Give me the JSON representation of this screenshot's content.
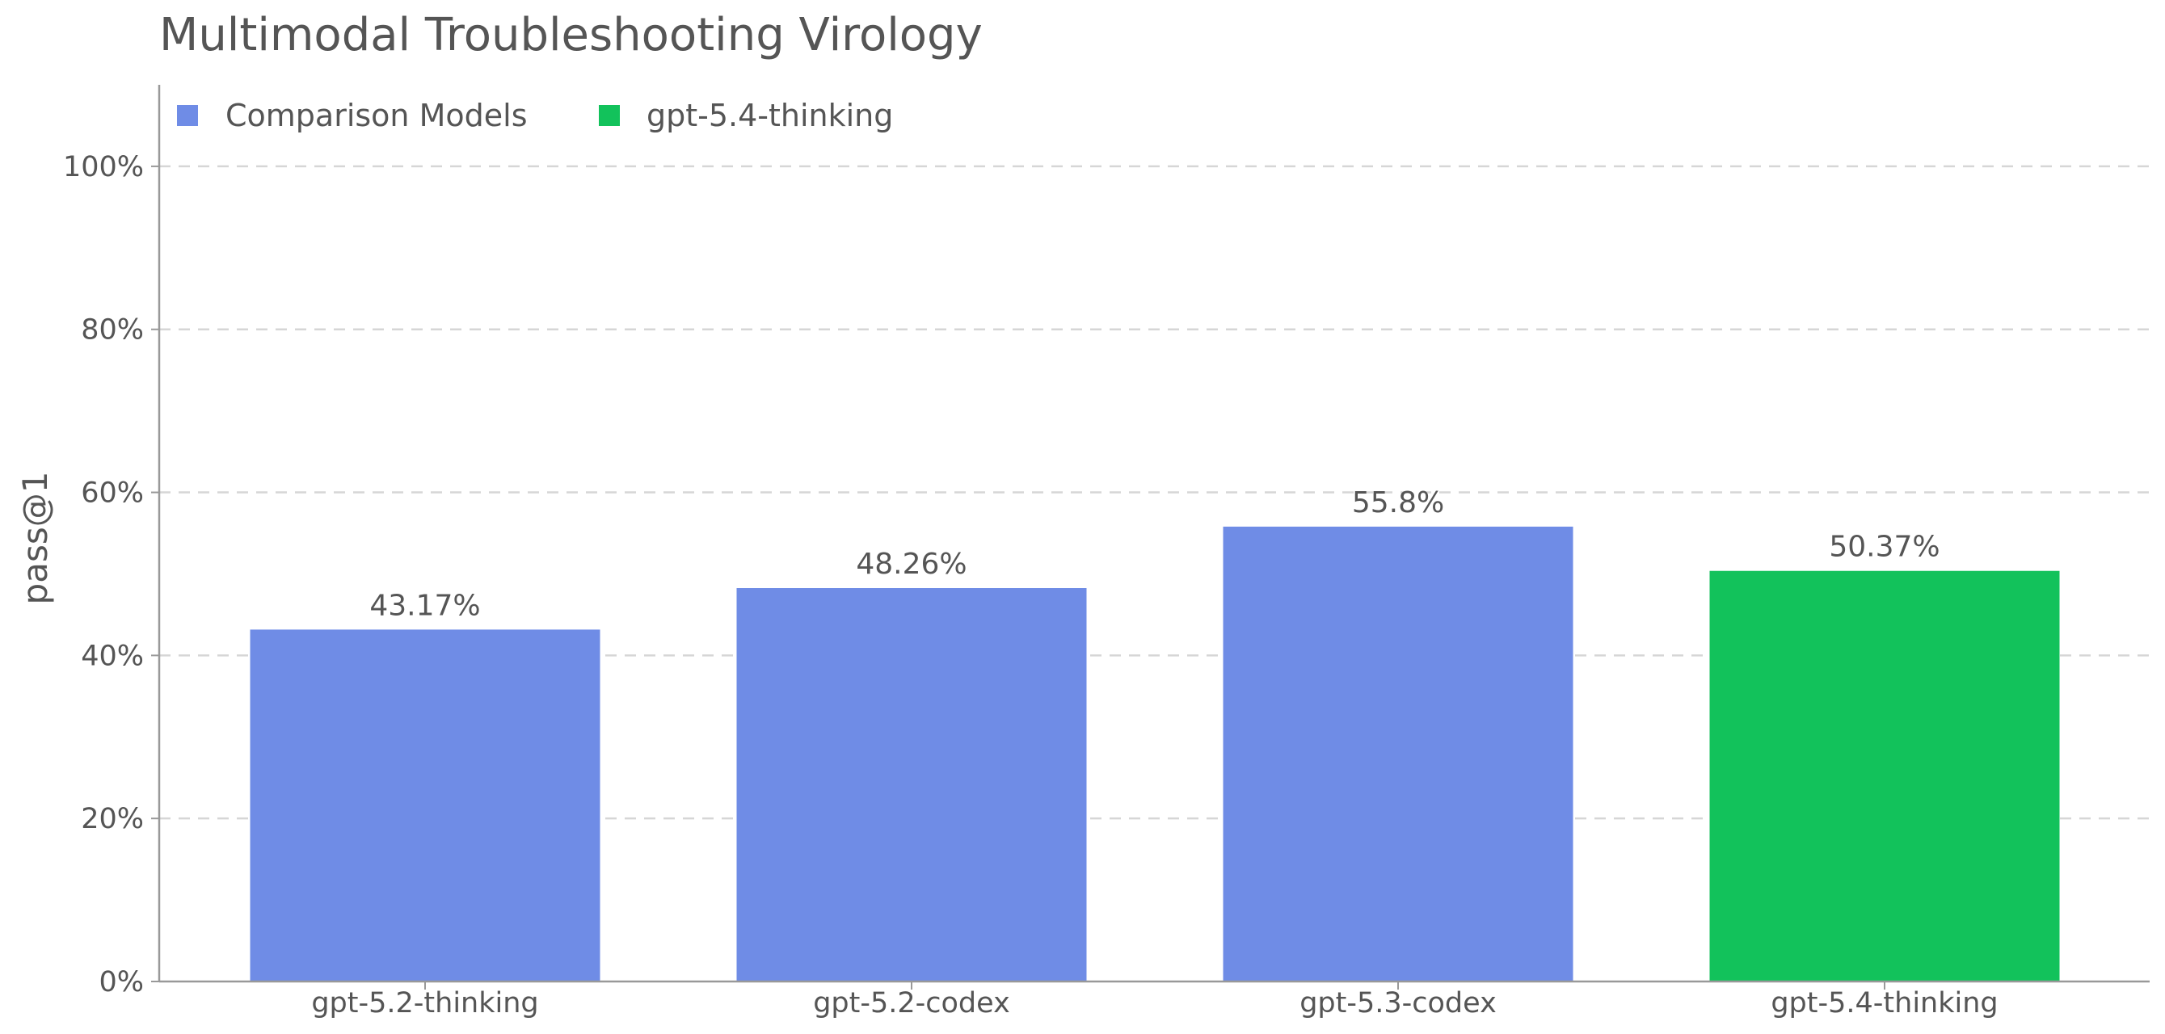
{
  "chart_data": {
    "type": "bar",
    "title": "Multimodal Troubleshooting Virology",
    "xlabel": "",
    "ylabel": "pass@1",
    "categories": [
      "gpt-5.2-thinking",
      "gpt-5.2-codex",
      "gpt-5.3-codex",
      "gpt-5.4-thinking"
    ],
    "values": [
      43.17,
      48.26,
      55.8,
      50.37
    ],
    "value_labels": [
      "43.17%",
      "48.26%",
      "55.8%",
      "50.37%"
    ],
    "bar_groups": [
      "Comparison Models",
      "Comparison Models",
      "Comparison Models",
      "gpt-5.4-thinking"
    ],
    "legend": {
      "placement": "top-left",
      "entries": [
        {
          "label": "Comparison Models",
          "color": "#6f8ce6"
        },
        {
          "label": "gpt-5.4-thinking",
          "color": "#12c25b"
        }
      ]
    },
    "ylim": [
      0,
      110
    ],
    "yticks": [
      0,
      20,
      40,
      60,
      80,
      100
    ],
    "ytick_labels": [
      "0%",
      "20%",
      "40%",
      "60%",
      "80%",
      "100%"
    ],
    "grid": {
      "y": true,
      "x": false,
      "style": "dashed"
    },
    "colors": {
      "comparison": "#6f8ce6",
      "highlight": "#12c25b",
      "text": "#555555",
      "grid": "#d6d6d6",
      "axis": "#999999"
    }
  }
}
